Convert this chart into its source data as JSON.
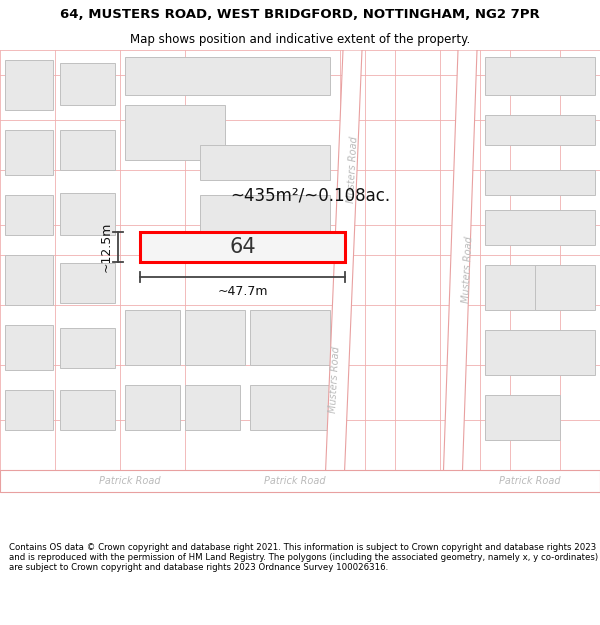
{
  "title_line1": "64, MUSTERS ROAD, WEST BRIDGFORD, NOTTINGHAM, NG2 7PR",
  "title_line2": "Map shows position and indicative extent of the property.",
  "footer_text": "Contains OS data © Crown copyright and database right 2021. This information is subject to Crown copyright and database rights 2023 and is reproduced with the permission of HM Land Registry. The polygons (including the associated geometry, namely x, y co-ordinates) are subject to Crown copyright and database rights 2023 Ordnance Survey 100026316.",
  "map_bg": "#ffffff",
  "road_fill": "#ffffff",
  "road_line_color": "#e8a0a0",
  "road_label_color": "#bbbbbb",
  "building_fill": "#e8e8e8",
  "building_edge": "#c0c0c0",
  "highlight_fill": "#f5f5f5",
  "highlight_edge": "#ff0000",
  "grid_color": "#f0b0b0",
  "dim_line_color": "#444444",
  "annotation_color": "#111111",
  "area_text": "~435m²/~0.108ac.",
  "width_text": "~47.7m",
  "height_text": "~12.5m",
  "number_text": "64",
  "title_fontsize": 9.5,
  "subtitle_fontsize": 8.5,
  "footer_fontsize": 6.2
}
